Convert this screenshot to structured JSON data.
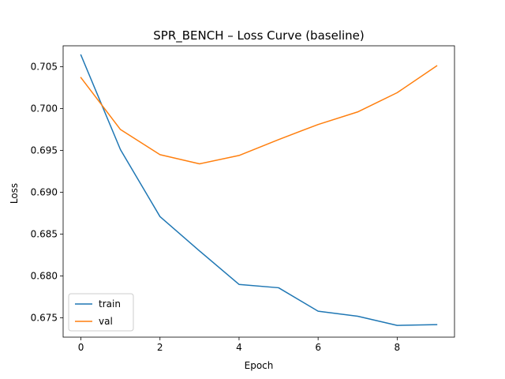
{
  "chart_data": {
    "type": "line",
    "title": "SPR_BENCH – Loss Curve (baseline)",
    "xlabel": "Epoch",
    "ylabel": "Loss",
    "x": [
      0,
      1,
      2,
      3,
      4,
      5,
      6,
      7,
      8,
      9
    ],
    "xlim": [
      -0.45,
      9.45
    ],
    "ylim": [
      0.6727,
      0.7075
    ],
    "xticks": [
      0,
      2,
      4,
      6,
      8
    ],
    "yticks": [
      0.675,
      0.68,
      0.685,
      0.69,
      0.695,
      0.7,
      0.705
    ],
    "ytick_labels": [
      "0.675",
      "0.680",
      "0.685",
      "0.690",
      "0.695",
      "0.700",
      "0.705"
    ],
    "grid": false,
    "legend_position": "lower-left",
    "series": [
      {
        "name": "train",
        "color": "#1f77b4",
        "values": [
          0.7064,
          0.6951,
          0.6871,
          0.683,
          0.679,
          0.6786,
          0.6758,
          0.6752,
          0.6741,
          0.6742
        ]
      },
      {
        "name": "val",
        "color": "#ff7f0e",
        "values": [
          0.7037,
          0.6975,
          0.6945,
          0.6934,
          0.6944,
          0.6963,
          0.6981,
          0.6996,
          0.7019,
          0.7051
        ]
      }
    ]
  }
}
